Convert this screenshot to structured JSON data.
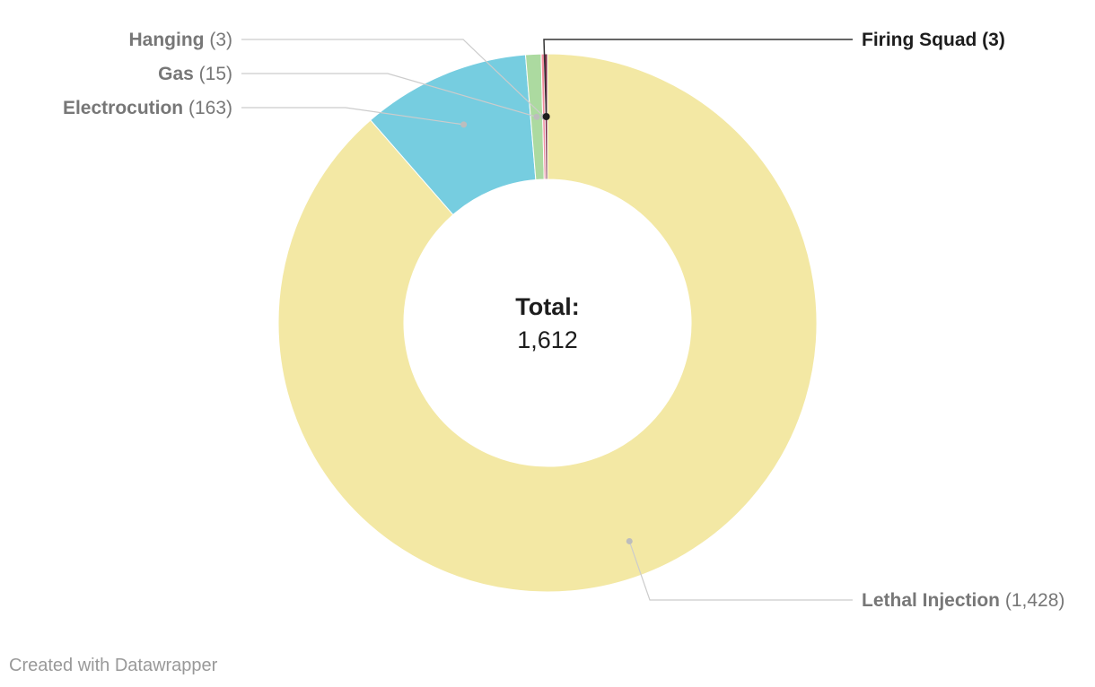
{
  "chart_data": {
    "type": "pie",
    "variant": "donut",
    "center_label": {
      "title": "Total:",
      "value": "1,612"
    },
    "slices": [
      {
        "name": "Lethal Injection",
        "value": 1428,
        "count_label": "(1,428)",
        "color": "#f3e8a4",
        "highlight": false
      },
      {
        "name": "Electrocution",
        "value": 163,
        "count_label": "(163)",
        "color": "#76cde0",
        "highlight": false
      },
      {
        "name": "Gas",
        "value": 15,
        "count_label": "(15)",
        "color": "#acdaa0",
        "highlight": false
      },
      {
        "name": "Hanging",
        "value": 3,
        "count_label": "(3)",
        "color": "#f28ea0",
        "highlight": false
      },
      {
        "name": "Firing Squad",
        "value": 3,
        "count_label": "(3)",
        "color": "#7a2e49",
        "highlight": true
      }
    ]
  },
  "footer": {
    "credit": "Created with Datawrapper"
  }
}
